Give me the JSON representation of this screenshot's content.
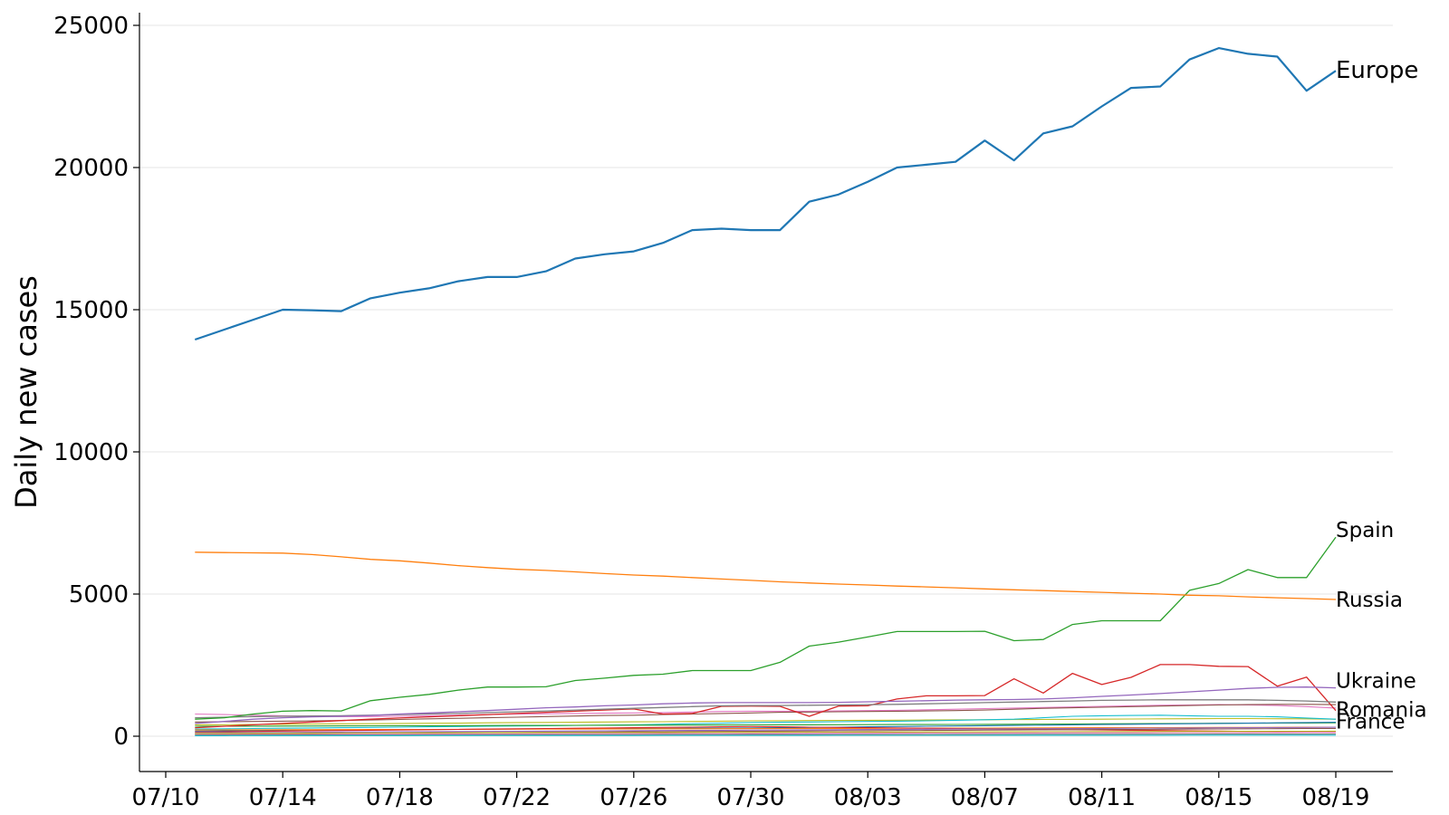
{
  "chart_data": {
    "type": "line",
    "xlabel": "",
    "ylabel": "Daily new cases",
    "ylim": [
      -1200,
      25500
    ],
    "xlim": [
      "07/10",
      "08/20"
    ],
    "grid": "horizontal",
    "x_tick_labels": [
      "07/10",
      "07/14",
      "07/18",
      "07/22",
      "07/26",
      "07/30",
      "08/03",
      "08/07",
      "08/11",
      "08/15",
      "08/19"
    ],
    "y_ticks": [
      0,
      5000,
      10000,
      15000,
      20000,
      25000
    ],
    "y_tick_labels": [
      "0",
      "5000",
      "10000",
      "15000",
      "20000",
      "25000"
    ],
    "x": [
      "07/11",
      "07/12",
      "07/13",
      "07/14",
      "07/15",
      "07/16",
      "07/17",
      "07/18",
      "07/19",
      "07/20",
      "07/21",
      "07/22",
      "07/23",
      "07/24",
      "07/25",
      "07/26",
      "07/27",
      "07/28",
      "07/29",
      "07/30",
      "07/31",
      "08/01",
      "08/02",
      "08/03",
      "08/04",
      "08/05",
      "08/06",
      "08/07",
      "08/08",
      "08/09",
      "08/10",
      "08/11",
      "08/12",
      "08/13",
      "08/14",
      "08/15",
      "08/16",
      "08/17",
      "08/18",
      "08/19"
    ],
    "series": [
      {
        "name": "Europe",
        "color": "#1f77b4",
        "width": 2.2,
        "values": [
          13950,
          14300,
          14650,
          15000,
          14980,
          14950,
          15400,
          15600,
          15750,
          16000,
          16150,
          16150,
          16350,
          16800,
          16950,
          17050,
          17350,
          17800,
          17850,
          17800,
          17800,
          18800,
          19050,
          19500,
          20000,
          20100,
          20200,
          20950,
          20250,
          21200,
          21450,
          22150,
          22800,
          22850,
          23800,
          24200,
          24000,
          23900,
          22700,
          23400
        ]
      },
      {
        "name": "Russia",
        "color": "#ff7f0e",
        "width": 1.3,
        "values": [
          6470,
          6460,
          6450,
          6440,
          6390,
          6310,
          6220,
          6170,
          6090,
          6000,
          5930,
          5870,
          5830,
          5780,
          5720,
          5670,
          5630,
          5580,
          5530,
          5480,
          5430,
          5390,
          5350,
          5320,
          5280,
          5250,
          5220,
          5180,
          5150,
          5120,
          5090,
          5060,
          5030,
          5000,
          4960,
          4940,
          4900,
          4870,
          4840,
          4810
        ]
      },
      {
        "name": "Spain",
        "color": "#2ca02c",
        "width": 1.3,
        "values": [
          600,
          650,
          780,
          880,
          900,
          890,
          1250,
          1370,
          1470,
          1620,
          1730,
          1730,
          1740,
          1960,
          2040,
          2140,
          2180,
          2310,
          2310,
          2310,
          2600,
          3170,
          3310,
          3490,
          3680,
          3680,
          3680,
          3690,
          3360,
          3400,
          3930,
          4060,
          4060,
          4060,
          5130,
          5370,
          5860,
          5580,
          5580,
          7000
        ]
      },
      {
        "name": "Ukraine",
        "color": "#9467bd",
        "width": 1.3,
        "values": [
          450,
          520,
          600,
          650,
          680,
          700,
          730,
          780,
          820,
          860,
          900,
          950,
          1000,
          1030,
          1070,
          1100,
          1140,
          1170,
          1180,
          1180,
          1180,
          1180,
          1190,
          1210,
          1230,
          1250,
          1270,
          1280,
          1290,
          1310,
          1350,
          1400,
          1450,
          1500,
          1560,
          1620,
          1680,
          1720,
          1730,
          1700
        ]
      },
      {
        "name": "Romania",
        "color": "#7f7f7f",
        "width": 1.3,
        "values": [
          650,
          670,
          690,
          700,
          710,
          720,
          740,
          760,
          780,
          800,
          830,
          860,
          890,
          920,
          950,
          980,
          1010,
          1040,
          1070,
          1080,
          1080,
          1090,
          1100,
          1110,
          1120,
          1140,
          1160,
          1180,
          1200,
          1220,
          1240,
          1260,
          1270,
          1280,
          1280,
          1280,
          1280,
          1260,
          1240,
          1200
        ]
      },
      {
        "name": "France",
        "color": "#d62728",
        "width": 1.3,
        "values": [
          300,
          350,
          400,
          450,
          500,
          550,
          600,
          640,
          680,
          720,
          760,
          800,
          840,
          880,
          920,
          960,
          780,
          800,
          1050,
          1060,
          1050,
          700,
          1060,
          1070,
          1310,
          1420,
          1420,
          1430,
          2020,
          1520,
          2210,
          1820,
          2070,
          2520,
          2520,
          2460,
          2450,
          1760,
          2080,
          900
        ]
      },
      {
        "name": "",
        "color": "#e377c2",
        "width": 1.1,
        "values": [
          780,
          760,
          740,
          720,
          700,
          690,
          690,
          700,
          720,
          740,
          760,
          780,
          790,
          800,
          810,
          820,
          830,
          850,
          870,
          880,
          880,
          880,
          890,
          900,
          910,
          930,
          950,
          970,
          990,
          1010,
          1030,
          1050,
          1070,
          1090,
          1100,
          1110,
          1100,
          1080,
          1040,
          990
        ]
      },
      {
        "name": "",
        "color": "#8c564b",
        "width": 1.1,
        "values": [
          500,
          510,
          520,
          530,
          540,
          550,
          570,
          590,
          610,
          630,
          650,
          670,
          690,
          710,
          730,
          740,
          760,
          780,
          800,
          820,
          840,
          850,
          860,
          870,
          880,
          890,
          900,
          920,
          950,
          980,
          1000,
          1020,
          1040,
          1060,
          1080,
          1100,
          1110,
          1120,
          1120,
          1110
        ]
      },
      {
        "name": "",
        "color": "#bcbd22",
        "width": 1.1,
        "values": [
          400,
          405,
          410,
          420,
          430,
          435,
          440,
          450,
          455,
          460,
          470,
          480,
          485,
          490,
          500,
          505,
          510,
          520,
          530,
          540,
          545,
          550,
          555,
          560,
          565,
          570,
          575,
          580,
          585,
          590,
          595,
          600,
          605,
          610,
          615,
          620,
          620,
          615,
          610,
          600
        ]
      },
      {
        "name": "",
        "color": "#17becf",
        "width": 1.1,
        "values": [
          250,
          260,
          270,
          280,
          290,
          300,
          310,
          320,
          330,
          340,
          350,
          360,
          370,
          380,
          390,
          400,
          420,
          440,
          460,
          480,
          490,
          500,
          510,
          520,
          530,
          540,
          560,
          580,
          600,
          650,
          700,
          720,
          730,
          740,
          720,
          700,
          700,
          680,
          640,
          600
        ]
      },
      {
        "name": "",
        "color": "#2ca02c",
        "width": 1.1,
        "values": [
          350,
          352,
          355,
          358,
          360,
          362,
          365,
          368,
          370,
          372,
          375,
          378,
          380,
          382,
          385,
          388,
          390,
          392,
          395,
          398,
          400,
          402,
          405,
          408,
          410,
          412,
          415,
          418,
          420,
          425,
          430,
          435,
          440,
          445,
          450,
          455,
          460,
          462,
          465,
          470
        ]
      },
      {
        "name": "",
        "color": "#1f77b4",
        "width": 1.1,
        "values": [
          180,
          190,
          200,
          210,
          215,
          220,
          225,
          230,
          235,
          240,
          245,
          250,
          255,
          260,
          265,
          270,
          275,
          280,
          285,
          290,
          300,
          310,
          320,
          330,
          340,
          350,
          360,
          370,
          380,
          390,
          400,
          410,
          420,
          430,
          440,
          450,
          460,
          470,
          480,
          490
        ]
      },
      {
        "name": "",
        "color": "#ff7f0e",
        "width": 1.1,
        "values": [
          220,
          222,
          225,
          228,
          230,
          232,
          235,
          238,
          240,
          242,
          245,
          248,
          250,
          252,
          255,
          258,
          260,
          262,
          265,
          268,
          270,
          272,
          275,
          278,
          280,
          282,
          285,
          288,
          290,
          292,
          295,
          298,
          300,
          302,
          305,
          308,
          310,
          312,
          315,
          318
        ]
      },
      {
        "name": "",
        "color": "#d62728",
        "width": 1.1,
        "values": [
          150,
          160,
          170,
          180,
          190,
          200,
          210,
          220,
          230,
          240,
          250,
          260,
          270,
          280,
          290,
          300,
          310,
          320,
          330,
          340,
          330,
          320,
          310,
          300,
          290,
          280,
          270,
          260,
          250,
          240,
          230,
          220,
          210,
          200,
          190,
          180,
          170,
          160,
          150,
          140
        ]
      },
      {
        "name": "",
        "color": "#9467bd",
        "width": 1.1,
        "values": [
          120,
          125,
          130,
          135,
          140,
          145,
          150,
          155,
          160,
          165,
          170,
          175,
          180,
          185,
          190,
          195,
          200,
          205,
          210,
          215,
          220,
          225,
          230,
          235,
          240,
          245,
          250,
          255,
          260,
          265,
          270,
          275,
          280,
          285,
          290,
          295,
          300,
          305,
          310,
          315
        ]
      },
      {
        "name": "",
        "color": "#8c564b",
        "width": 1.1,
        "values": [
          80,
          85,
          90,
          95,
          100,
          105,
          110,
          115,
          120,
          125,
          130,
          135,
          140,
          145,
          150,
          155,
          160,
          165,
          170,
          175,
          180,
          185,
          190,
          195,
          200,
          205,
          210,
          215,
          220,
          225,
          230,
          235,
          240,
          245,
          250,
          255,
          260,
          265,
          270,
          275
        ]
      },
      {
        "name": "",
        "color": "#e377c2",
        "width": 1.1,
        "values": [
          60,
          62,
          64,
          66,
          68,
          70,
          72,
          74,
          76,
          78,
          80,
          82,
          84,
          86,
          88,
          90,
          92,
          94,
          96,
          98,
          100,
          102,
          104,
          106,
          108,
          110,
          112,
          114,
          116,
          118,
          120,
          122,
          124,
          126,
          128,
          130,
          132,
          134,
          136,
          138
        ]
      },
      {
        "name": "",
        "color": "#7f7f7f",
        "width": 1.1,
        "values": [
          40,
          41,
          42,
          43,
          44,
          45,
          46,
          47,
          48,
          49,
          50,
          51,
          52,
          53,
          54,
          55,
          56,
          57,
          58,
          59,
          60,
          61,
          62,
          63,
          64,
          65,
          66,
          67,
          68,
          69,
          70,
          71,
          72,
          73,
          74,
          75,
          76,
          77,
          78,
          79
        ]
      },
      {
        "name": "",
        "color": "#17becf",
        "width": 1.1,
        "values": [
          20,
          20,
          21,
          21,
          22,
          22,
          23,
          23,
          24,
          24,
          25,
          25,
          26,
          26,
          27,
          27,
          28,
          28,
          29,
          29,
          30,
          30,
          31,
          31,
          32,
          32,
          33,
          33,
          34,
          34,
          35,
          35,
          36,
          36,
          37,
          37,
          38,
          38,
          39,
          39
        ]
      },
      {
        "name": "",
        "color": "#bcbd22",
        "width": 1.1,
        "values": [
          100,
          102,
          104,
          106,
          108,
          110,
          112,
          114,
          116,
          118,
          120,
          122,
          124,
          126,
          128,
          130,
          132,
          134,
          136,
          138,
          140,
          142,
          144,
          146,
          148,
          150,
          152,
          154,
          156,
          158,
          160,
          162,
          164,
          166,
          168,
          170,
          172,
          174,
          176,
          178
        ]
      }
    ],
    "labeled_series": [
      {
        "name": "Europe",
        "label": "Europe"
      },
      {
        "name": "Spain",
        "label": "Spain"
      },
      {
        "name": "Russia",
        "label": "Russia"
      },
      {
        "name": "Ukraine",
        "label": "Ukraine"
      },
      {
        "name": "Romania",
        "label": "Romania"
      },
      {
        "name": "France",
        "label": "France"
      }
    ]
  }
}
